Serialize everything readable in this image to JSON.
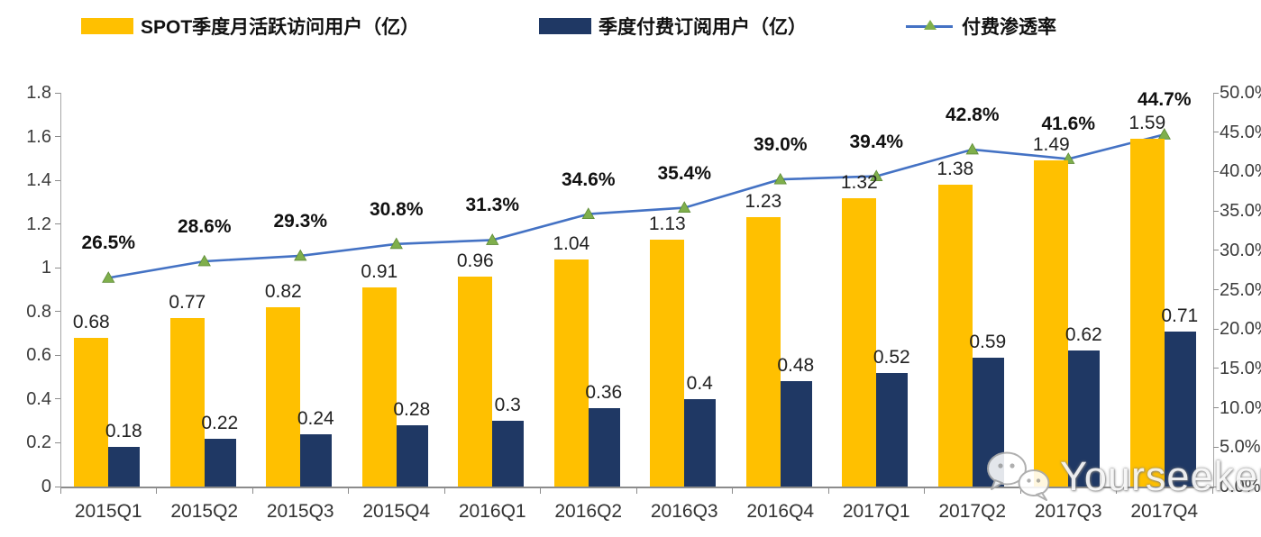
{
  "colors": {
    "mau_bar": "#FFC000",
    "sub_bar": "#1F3864",
    "line": "#4472C4",
    "marker": "#7FAF4C",
    "marker_edge": "#5d8a35",
    "axis": "#8c8c8c"
  },
  "legend": [
    {
      "label": "SPOT季度月活跃访问用户（亿）",
      "type": "bar",
      "color": "#FFC000"
    },
    {
      "label": "季度付费订阅用户（亿）",
      "type": "bar",
      "color": "#1F3864"
    },
    {
      "label": "付费渗透率",
      "type": "line",
      "color": "#4472C4",
      "marker_color": "#7FAF4C"
    }
  ],
  "chart_data": {
    "type": "combo-bar-line",
    "categories": [
      "2015Q1",
      "2015Q2",
      "2015Q3",
      "2015Q4",
      "2016Q1",
      "2016Q2",
      "2016Q3",
      "2016Q4",
      "2017Q1",
      "2017Q2",
      "2017Q3",
      "2017Q4"
    ],
    "series": [
      {
        "name": "SPOT季度月活跃访问用户（亿）",
        "type": "bar",
        "color": "#FFC000",
        "values": [
          0.68,
          0.77,
          0.82,
          0.91,
          0.96,
          1.04,
          1.13,
          1.23,
          1.32,
          1.38,
          1.49,
          1.59
        ],
        "labels": [
          "0.68",
          "0.77",
          "0.82",
          "0.91",
          "0.96",
          "1.04",
          "1.13",
          "1.23",
          "1.32",
          "1.38",
          "1.49",
          "1.59"
        ]
      },
      {
        "name": "季度付费订阅用户（亿）",
        "type": "bar",
        "color": "#1F3864",
        "values": [
          0.18,
          0.22,
          0.24,
          0.28,
          0.3,
          0.36,
          0.4,
          0.48,
          0.52,
          0.59,
          0.62,
          0.71
        ],
        "labels": [
          "0.18",
          "0.22",
          "0.24",
          "0.28",
          "0.3",
          "0.36",
          "0.4",
          "0.48",
          "0.52",
          "0.59",
          "0.62",
          "0.71"
        ]
      },
      {
        "name": "付费渗透率",
        "type": "line",
        "color": "#4472C4",
        "marker": "triangle",
        "marker_color": "#7FAF4C",
        "values_percent": [
          26.5,
          28.6,
          29.3,
          30.8,
          31.3,
          34.6,
          35.4,
          39.0,
          39.4,
          42.8,
          41.6,
          44.7
        ],
        "labels": [
          "26.5%",
          "28.6%",
          "29.3%",
          "30.8%",
          "31.3%",
          "34.6%",
          "35.4%",
          "39.0%",
          "39.4%",
          "42.8%",
          "41.6%",
          "44.7%"
        ]
      }
    ],
    "left_axis": {
      "min": 0,
      "max": 1.8,
      "step": 0.2,
      "tick_labels": [
        "0",
        "0.2",
        "0.4",
        "0.6",
        "0.8",
        "1",
        "1.2",
        "1.4",
        "1.6",
        "1.8"
      ]
    },
    "right_axis": {
      "min": 0,
      "max": 50,
      "step": 5,
      "tick_labels": [
        "0.0%",
        "5.0%",
        "10.0%",
        "15.0%",
        "20.0%",
        "25.0%",
        "30.0%",
        "35.0%",
        "40.0%",
        "45.0%",
        "50.0%"
      ]
    },
    "grid": false,
    "legend_position": "top"
  },
  "watermark": {
    "text": "Yourseeker",
    "icon": "wechat-icon"
  }
}
